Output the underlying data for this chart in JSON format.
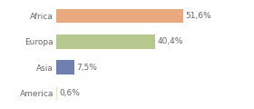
{
  "categories": [
    "Africa",
    "Europa",
    "Asia",
    "America"
  ],
  "values": [
    51.6,
    40.4,
    7.5,
    0.6
  ],
  "labels": [
    "51,6%",
    "40,4%",
    "7,5%",
    "0,6%"
  ],
  "bar_colors": [
    "#e8a97e",
    "#b5c98e",
    "#6e7fb0",
    "#f5e6a0"
  ],
  "background_color": "#ffffff",
  "xlim": [
    0,
    68
  ],
  "bar_height": 0.55,
  "label_fontsize": 6.5,
  "tick_fontsize": 6.5,
  "label_color": "#666666",
  "tick_color": "#666666"
}
